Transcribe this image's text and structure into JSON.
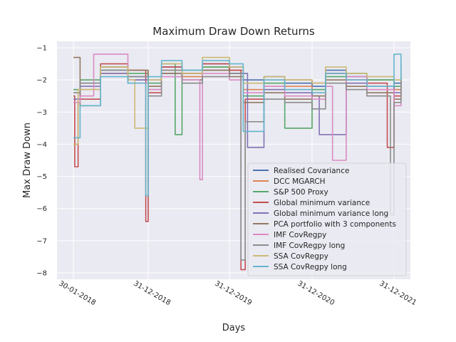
{
  "chart_data": {
    "type": "line",
    "title": "Maximum Draw Down Returns",
    "xlabel": "Days",
    "ylabel": "Max Draw Down",
    "x_ticks": [
      "30-01-2018",
      "31-12-2018",
      "31-12-2019",
      "31-12-2020",
      "31-12-2021"
    ],
    "y_ticks": [
      -1,
      -2,
      -3,
      -4,
      -5,
      -6,
      -7,
      -8
    ],
    "ylim": [
      -8.2,
      -0.8
    ],
    "grid": true,
    "legend_position": "lower-right",
    "series": [
      {
        "name": "Realised Covariance",
        "color": "#4C72B0",
        "points": [
          [
            "2018-01-30",
            -2.4
          ],
          [
            "2018-03-01",
            -2.1
          ],
          [
            "2018-06-01",
            -1.7
          ],
          [
            "2018-10-01",
            -1.9
          ],
          [
            "2018-12-31",
            -2.0
          ],
          [
            "2019-03-01",
            -1.6
          ],
          [
            "2019-06-01",
            -1.8
          ],
          [
            "2019-09-01",
            -1.5
          ],
          [
            "2019-12-31",
            -1.6
          ],
          [
            "2020-03-01",
            -2.0
          ],
          [
            "2020-06-01",
            -1.9
          ],
          [
            "2020-09-01",
            -2.1
          ],
          [
            "2020-12-31",
            -2.2
          ],
          [
            "2021-03-01",
            -1.7
          ],
          [
            "2021-06-01",
            -1.9
          ],
          [
            "2021-09-01",
            -2.0
          ],
          [
            "2021-12-31",
            -2.1
          ],
          [
            "2022-01-31",
            -1.9
          ]
        ]
      },
      {
        "name": "DCC MGARCH",
        "color": "#DD8452",
        "points": [
          [
            "2018-01-30",
            -2.6
          ],
          [
            "2018-03-01",
            -2.3
          ],
          [
            "2018-06-01",
            -1.8
          ],
          [
            "2018-10-01",
            -2.0
          ],
          [
            "2018-12-31",
            -2.2
          ],
          [
            "2019-03-01",
            -1.7
          ],
          [
            "2019-06-01",
            -1.9
          ],
          [
            "2019-09-01",
            -1.6
          ],
          [
            "2019-12-31",
            -1.7
          ],
          [
            "2020-03-01",
            -2.3
          ],
          [
            "2020-06-01",
            -2.0
          ],
          [
            "2020-09-01",
            -2.2
          ],
          [
            "2020-12-31",
            -2.4
          ],
          [
            "2021-03-01",
            -1.8
          ],
          [
            "2021-06-01",
            -2.0
          ],
          [
            "2021-09-01",
            -2.2
          ],
          [
            "2021-12-31",
            -2.3
          ],
          [
            "2022-01-31",
            -2.0
          ]
        ]
      },
      {
        "name": "S&P 500 Proxy",
        "color": "#55A868",
        "points": [
          [
            "2018-01-30",
            -2.3
          ],
          [
            "2018-03-01",
            -2.0
          ],
          [
            "2018-06-01",
            -1.6
          ],
          [
            "2018-10-01",
            -1.8
          ],
          [
            "2018-12-31",
            -2.1
          ],
          [
            "2019-03-01",
            -1.5
          ],
          [
            "2019-05-01",
            -3.7
          ],
          [
            "2019-06-01",
            -1.7
          ],
          [
            "2019-09-01",
            -1.6
          ],
          [
            "2019-12-31",
            -1.8
          ],
          [
            "2020-03-01",
            -2.5
          ],
          [
            "2020-06-01",
            -2.1
          ],
          [
            "2020-09-01",
            -3.5
          ],
          [
            "2020-12-31",
            -2.3
          ],
          [
            "2021-03-01",
            -1.9
          ],
          [
            "2021-06-01",
            -1.8
          ],
          [
            "2021-09-01",
            -2.0
          ],
          [
            "2021-12-31",
            -2.2
          ],
          [
            "2022-01-31",
            -1.5
          ]
        ]
      },
      {
        "name": "Global minimum variance",
        "color": "#C44E52",
        "points": [
          [
            "2018-01-30",
            -2.5
          ],
          [
            "2018-02-05",
            -4.7
          ],
          [
            "2018-02-20",
            -2.6
          ],
          [
            "2018-06-01",
            -1.5
          ],
          [
            "2018-10-01",
            -1.7
          ],
          [
            "2018-12-20",
            -6.4
          ],
          [
            "2018-12-31",
            -2.4
          ],
          [
            "2019-03-01",
            -1.6
          ],
          [
            "2019-06-01",
            -1.8
          ],
          [
            "2019-09-01",
            -1.5
          ],
          [
            "2019-12-31",
            -1.7
          ],
          [
            "2020-02-20",
            -7.9
          ],
          [
            "2020-03-10",
            -2.6
          ],
          [
            "2020-06-01",
            -2.2
          ],
          [
            "2020-09-01",
            -2.0
          ],
          [
            "2020-12-31",
            -2.1
          ],
          [
            "2021-03-01",
            -1.8
          ],
          [
            "2021-06-01",
            -2.0
          ],
          [
            "2021-09-01",
            -2.1
          ],
          [
            "2021-12-01",
            -4.1
          ],
          [
            "2021-12-31",
            -2.5
          ],
          [
            "2022-01-31",
            -1.8
          ]
        ]
      },
      {
        "name": "Global minimum variance long",
        "color": "#8172B3",
        "points": [
          [
            "2018-01-30",
            -2.6
          ],
          [
            "2018-03-01",
            -2.2
          ],
          [
            "2018-06-01",
            -1.8
          ],
          [
            "2018-10-01",
            -2.0
          ],
          [
            "2018-12-31",
            -2.3
          ],
          [
            "2019-03-01",
            -1.8
          ],
          [
            "2019-06-01",
            -2.0
          ],
          [
            "2019-09-01",
            -1.7
          ],
          [
            "2019-12-31",
            -1.8
          ],
          [
            "2020-03-20",
            -4.1
          ],
          [
            "2020-06-01",
            -2.3
          ],
          [
            "2020-09-01",
            -2.4
          ],
          [
            "2020-12-31",
            -2.5
          ],
          [
            "2021-02-01",
            -3.7
          ],
          [
            "2021-06-01",
            -2.1
          ],
          [
            "2021-09-01",
            -2.2
          ],
          [
            "2021-12-31",
            -2.4
          ],
          [
            "2022-01-31",
            -2.0
          ]
        ]
      },
      {
        "name": "PCA portfolio with 3 components",
        "color": "#937860",
        "points": [
          [
            "2018-01-30",
            -1.3
          ],
          [
            "2018-03-01",
            -2.8
          ],
          [
            "2018-06-01",
            -1.6
          ],
          [
            "2018-10-01",
            -1.7
          ],
          [
            "2018-12-31",
            -2.2
          ],
          [
            "2019-03-01",
            -1.8
          ],
          [
            "2019-06-01",
            -2.0
          ],
          [
            "2019-09-01",
            -1.7
          ],
          [
            "2019-12-31",
            -1.9
          ],
          [
            "2020-03-01",
            -2.7
          ],
          [
            "2020-06-01",
            -2.4
          ],
          [
            "2020-09-01",
            -2.6
          ],
          [
            "2020-12-31",
            -2.5
          ],
          [
            "2021-03-01",
            -2.0
          ],
          [
            "2021-06-01",
            -2.2
          ],
          [
            "2021-09-01",
            -2.4
          ],
          [
            "2021-12-31",
            -2.6
          ],
          [
            "2022-01-31",
            -2.2
          ]
        ]
      },
      {
        "name": "IMF CovRegpy",
        "color": "#DA8BC3",
        "points": [
          [
            "2018-01-30",
            -2.7
          ],
          [
            "2018-03-01",
            -2.5
          ],
          [
            "2018-05-01",
            -1.2
          ],
          [
            "2018-10-01",
            -2.1
          ],
          [
            "2018-12-31",
            -2.3
          ],
          [
            "2019-03-01",
            -1.9
          ],
          [
            "2019-06-01",
            -2.0
          ],
          [
            "2019-08-20",
            -5.1
          ],
          [
            "2019-09-01",
            -1.8
          ],
          [
            "2019-12-31",
            -2.0
          ],
          [
            "2020-03-01",
            -2.4
          ],
          [
            "2020-06-01",
            -2.2
          ],
          [
            "2020-09-01",
            -2.5
          ],
          [
            "2020-12-31",
            -2.6
          ],
          [
            "2021-03-01",
            -2.2
          ],
          [
            "2021-04-01",
            -4.5
          ],
          [
            "2021-06-01",
            -1.9
          ],
          [
            "2021-09-01",
            -2.3
          ],
          [
            "2021-12-31",
            -2.8
          ],
          [
            "2022-01-31",
            -2.1
          ]
        ]
      },
      {
        "name": "IMF CovRegpy long",
        "color": "#8C8C8C",
        "points": [
          [
            "2018-01-30",
            -2.4
          ],
          [
            "2018-03-01",
            -2.1
          ],
          [
            "2018-06-01",
            -1.7
          ],
          [
            "2018-10-01",
            -1.9
          ],
          [
            "2018-12-31",
            -2.5
          ],
          [
            "2019-03-01",
            -1.7
          ],
          [
            "2019-06-01",
            -2.1
          ],
          [
            "2019-09-01",
            -1.9
          ],
          [
            "2019-12-31",
            -1.8
          ],
          [
            "2020-02-20",
            -7.6
          ],
          [
            "2020-03-10",
            -3.3
          ],
          [
            "2020-06-01",
            -2.6
          ],
          [
            "2020-09-01",
            -2.7
          ],
          [
            "2020-12-31",
            -2.9
          ],
          [
            "2021-03-01",
            -2.1
          ],
          [
            "2021-06-01",
            -2.3
          ],
          [
            "2021-09-01",
            -2.5
          ],
          [
            "2021-12-15",
            -6.2
          ],
          [
            "2021-12-31",
            -2.7
          ],
          [
            "2022-01-31",
            -2.0
          ]
        ]
      },
      {
        "name": "SSA CovRegpy",
        "color": "#CCB974",
        "points": [
          [
            "2018-01-30",
            -4.0
          ],
          [
            "2018-02-20",
            -2.3
          ],
          [
            "2018-06-01",
            -1.6
          ],
          [
            "2018-10-01",
            -2.0
          ],
          [
            "2018-11-01",
            -3.5
          ],
          [
            "2018-12-31",
            -2.0
          ],
          [
            "2019-03-01",
            -1.5
          ],
          [
            "2019-06-01",
            -1.8
          ],
          [
            "2019-09-01",
            -1.3
          ],
          [
            "2019-12-31",
            -1.6
          ],
          [
            "2020-03-01",
            -2.1
          ],
          [
            "2020-06-01",
            -1.9
          ],
          [
            "2020-09-01",
            -2.0
          ],
          [
            "2020-12-31",
            -2.1
          ],
          [
            "2021-03-01",
            -1.6
          ],
          [
            "2021-06-01",
            -1.8
          ],
          [
            "2021-09-01",
            -1.9
          ],
          [
            "2021-12-31",
            -2.0
          ],
          [
            "2022-01-31",
            -1.7
          ]
        ]
      },
      {
        "name": "SSA CovRegpy long",
        "color": "#64B5CD",
        "points": [
          [
            "2018-01-30",
            -3.8
          ],
          [
            "2018-03-01",
            -2.8
          ],
          [
            "2018-06-01",
            -1.9
          ],
          [
            "2018-10-01",
            -2.1
          ],
          [
            "2018-12-20",
            -5.6
          ],
          [
            "2018-12-31",
            -1.9
          ],
          [
            "2019-03-01",
            -1.4
          ],
          [
            "2019-06-01",
            -1.7
          ],
          [
            "2019-09-01",
            -1.4
          ],
          [
            "2019-12-31",
            -1.5
          ],
          [
            "2020-03-01",
            -3.6
          ],
          [
            "2020-06-01",
            -2.0
          ],
          [
            "2020-09-01",
            -2.3
          ],
          [
            "2020-12-31",
            -2.4
          ],
          [
            "2021-03-01",
            -1.8
          ],
          [
            "2021-06-01",
            -2.0
          ],
          [
            "2021-09-01",
            -2.2
          ],
          [
            "2021-12-31",
            -1.2
          ],
          [
            "2022-01-31",
            -2.0
          ]
        ]
      }
    ]
  }
}
